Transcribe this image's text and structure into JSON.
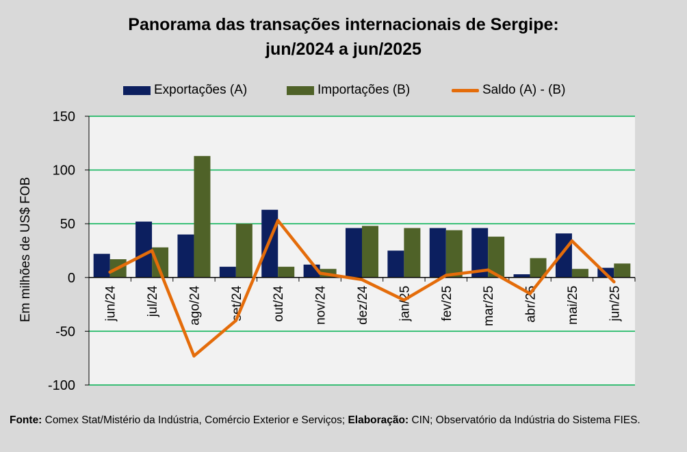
{
  "chart_data": {
    "type": "bar+line",
    "title_line1": "Panorama  das transações internacionais de Sergipe:",
    "title_line2": "jun/2024 a jun/2025",
    "ylabel": "Em milhões de US$ FOB",
    "ylim": [
      -100,
      150
    ],
    "yticks": [
      150,
      100,
      50,
      0,
      -50,
      -100
    ],
    "grid": true,
    "categories": [
      "jun/24",
      "jul/24",
      "ago/24",
      "set/24",
      "out/24",
      "nov/24",
      "dez/24",
      "jan/25",
      "fev/25",
      "mar/25",
      "abr/25",
      "mai/25",
      "jun/25"
    ],
    "series": [
      {
        "name": "Exportações (A)",
        "kind": "bar",
        "color": "#0c1f5f",
        "values": [
          22,
          52,
          40,
          10,
          63,
          12,
          46,
          25,
          46,
          46,
          3,
          41,
          9
        ]
      },
      {
        "name": "Importações (B)",
        "kind": "bar",
        "color": "#4f6228",
        "values": [
          17,
          28,
          113,
          50,
          10,
          8,
          48,
          46,
          44,
          38,
          18,
          8,
          13
        ]
      },
      {
        "name": "Saldo (A) - (B)",
        "kind": "line",
        "color": "#e46c0a",
        "values": [
          5,
          25,
          -73,
          -40,
          53,
          4,
          -2,
          -21,
          2,
          7,
          -15,
          34,
          -4
        ]
      }
    ]
  },
  "footer": {
    "fonte_label": "Fonte:",
    "fonte_text": " Comex Stat/Mistério da Indústria, Comércio Exterior e Serviços; ",
    "elab_label": "Elaboração:",
    "elab_text": " CIN; Observatório da Indústria do Sistema FIES."
  }
}
